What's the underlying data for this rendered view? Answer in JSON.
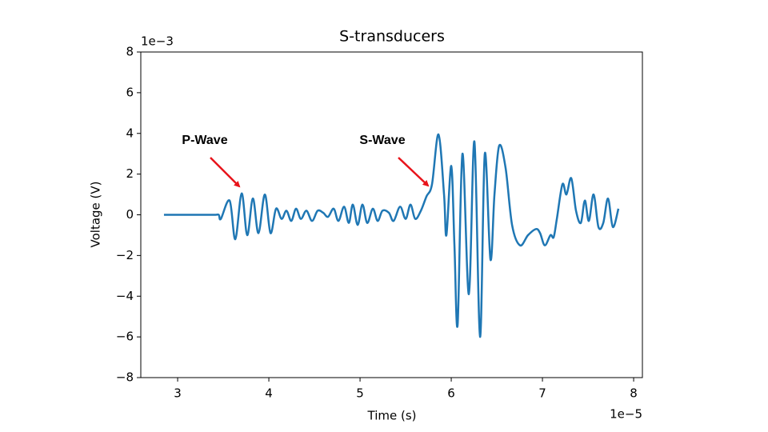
{
  "chart_data": {
    "type": "line",
    "title": "S-transducers",
    "x_label": "Time (s)",
    "y_label": "Voltage (V)",
    "x_offset_label": "1e−5",
    "y_offset_label": "1e−3",
    "xlim": [
      2.596,
      8.096
    ],
    "ylim": [
      -8,
      8
    ],
    "xticks": [
      3,
      4,
      5,
      6,
      7,
      8
    ],
    "yticks": [
      {
        "value": -8,
        "label": "−8"
      },
      {
        "value": -6,
        "label": "−6"
      },
      {
        "value": -4,
        "label": "−4"
      },
      {
        "value": -2,
        "label": "−2"
      },
      0,
      2,
      4,
      6,
      8
    ],
    "grid": false,
    "annotations": [
      {
        "text": "P-Wave"
      },
      {
        "text": "S-Wave"
      }
    ],
    "annotation_color": "#e8141b",
    "series": [
      {
        "name": "S-transducers",
        "color": "#1f77b4",
        "x": [
          2.85,
          3.0,
          3.2,
          3.4,
          3.45,
          3.474,
          3.57,
          3.632,
          3.702,
          3.763,
          3.825,
          3.886,
          3.956,
          4.018,
          4.079,
          4.14,
          4.193,
          4.246,
          4.298,
          4.351,
          4.412,
          4.474,
          4.535,
          4.596,
          4.649,
          4.711,
          4.763,
          4.825,
          4.877,
          4.921,
          4.974,
          5.026,
          5.079,
          5.14,
          5.193,
          5.246,
          5.316,
          5.368,
          5.439,
          5.5,
          5.553,
          5.605,
          5.667,
          5.728,
          5.789,
          5.86,
          5.921,
          5.947,
          6.0,
          6.035,
          6.07,
          6.123,
          6.193,
          6.254,
          6.316,
          6.368,
          6.43,
          6.474,
          6.526,
          6.596,
          6.667,
          6.754,
          6.842,
          6.93,
          6.974,
          7.026,
          7.088,
          7.123,
          7.158,
          7.219,
          7.263,
          7.316,
          7.368,
          7.421,
          7.465,
          7.509,
          7.561,
          7.614,
          7.667,
          7.719,
          7.772,
          7.833
        ],
        "values": [
          0,
          0,
          0,
          0,
          0,
          -0.2,
          0.7,
          -1.2,
          1.05,
          -1.0,
          0.8,
          -0.9,
          1.0,
          -0.9,
          0.3,
          -0.2,
          0.2,
          -0.3,
          0.3,
          -0.2,
          0.2,
          -0.3,
          0.2,
          0.1,
          -0.1,
          0.3,
          -0.3,
          0.4,
          -0.4,
          0.5,
          -0.5,
          0.5,
          -0.4,
          0.3,
          -0.3,
          0.2,
          0.1,
          -0.3,
          0.4,
          -0.2,
          0.5,
          -0.2,
          0.2,
          0.9,
          1.5,
          3.95,
          1.0,
          -1.0,
          2.4,
          -1.5,
          -5.4,
          3.0,
          -3.9,
          3.6,
          -6.0,
          3.0,
          -2.2,
          1.0,
          3.4,
          2.3,
          -0.5,
          -1.5,
          -1.0,
          -0.7,
          -0.9,
          -1.5,
          -1.0,
          -1.1,
          -0.2,
          1.5,
          1.0,
          1.8,
          0.2,
          -0.4,
          0.7,
          -0.3,
          1.0,
          -0.6,
          -0.4,
          0.8,
          -0.6,
          0.3
        ]
      }
    ]
  }
}
